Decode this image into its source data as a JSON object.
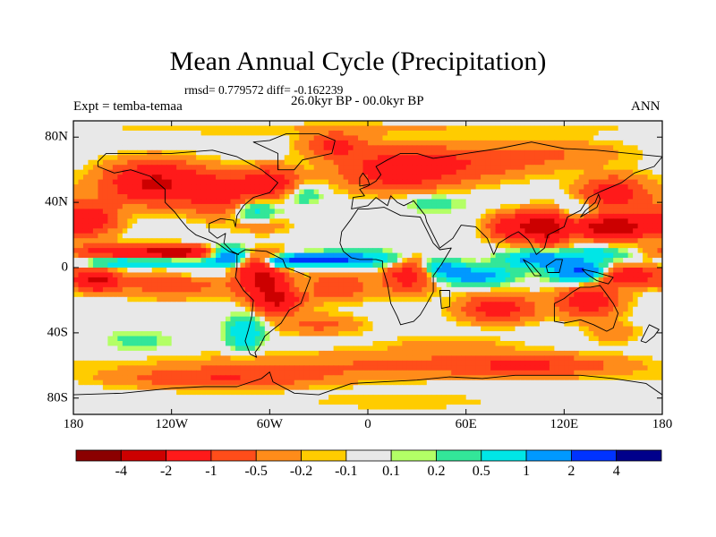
{
  "title": "Mean Annual Cycle (Precipitation)",
  "stats_text": "rmsd= 0.779572 diff= -0.162239",
  "experiment_label": "Expt = temba-temaa",
  "period_label": "26.0kyr BP - 00.0kyr BP",
  "season_label": "ANN",
  "x_ticks": [
    "180",
    "120W",
    "60W",
    "0",
    "60E",
    "120E",
    "180"
  ],
  "y_ticks": [
    "80N",
    "40N",
    "0",
    "40S",
    "80S"
  ],
  "colorbar": {
    "colors": [
      "#8b0000",
      "#cc0000",
      "#ff1a1a",
      "#ff4d1a",
      "#ff8c1a",
      "#ffcc00",
      "#e8e8e8",
      "#b3ff66",
      "#33e699",
      "#00e6e6",
      "#0099ff",
      "#0033ff",
      "#00008b"
    ],
    "labels": [
      "-4",
      "-2",
      "-1",
      "-0.5",
      "-0.2",
      "-0.1",
      "0.1",
      "0.2",
      "0.5",
      "1",
      "2",
      "4"
    ]
  },
  "chart_data": {
    "type": "heatmap",
    "title": "Mean Annual Cycle (Precipitation)",
    "subtitle": "rmsd= 0.779572 diff= -0.162239",
    "xlabel": "",
    "ylabel": "",
    "xlim": [
      -180,
      180
    ],
    "ylim": [
      -90,
      90
    ],
    "x_tick_labels": [
      "180",
      "120W",
      "60W",
      "0",
      "60E",
      "120E",
      "180"
    ],
    "y_tick_labels": [
      "80N",
      "40N",
      "0",
      "40S",
      "80S"
    ],
    "contour_levels": [
      -4,
      -2,
      -1,
      -0.5,
      -0.2,
      -0.1,
      0.1,
      0.2,
      0.5,
      1,
      2,
      4
    ],
    "background_value": 0,
    "anomalies": [
      {
        "lon": -130,
        "lat": 52,
        "v": -2.2,
        "rx": 28,
        "ry": 12
      },
      {
        "lon": -170,
        "lat": 30,
        "v": -1.5,
        "rx": 16,
        "ry": 10
      },
      {
        "lon": -150,
        "lat": 10,
        "v": -1.6,
        "rx": 30,
        "ry": 4
      },
      {
        "lon": -115,
        "lat": 9,
        "v": -2.4,
        "rx": 20,
        "ry": 4
      },
      {
        "lon": -85,
        "lat": 7,
        "v": 1.6,
        "rx": 12,
        "ry": 6
      },
      {
        "lon": -120,
        "lat": 3,
        "v": 1.2,
        "rx": 25,
        "ry": 3
      },
      {
        "lon": -155,
        "lat": 3,
        "v": 0.8,
        "rx": 18,
        "ry": 3
      },
      {
        "lon": -120,
        "lat": -10,
        "v": -0.9,
        "rx": 30,
        "ry": 8
      },
      {
        "lon": -165,
        "lat": -8,
        "v": -2.2,
        "rx": 12,
        "ry": 6
      },
      {
        "lon": -105,
        "lat": -5,
        "v": 0.4,
        "rx": 25,
        "ry": 3
      },
      {
        "lon": -90,
        "lat": 45,
        "v": -1.4,
        "rx": 20,
        "ry": 12
      },
      {
        "lon": -60,
        "lat": 52,
        "v": -1.6,
        "rx": 16,
        "ry": 9
      },
      {
        "lon": -70,
        "lat": 35,
        "v": 0.8,
        "rx": 14,
        "ry": 7
      },
      {
        "lon": -65,
        "lat": 26,
        "v": -0.4,
        "rx": 18,
        "ry": 5
      },
      {
        "lon": -40,
        "lat": 45,
        "v": 0.5,
        "rx": 12,
        "ry": 6
      },
      {
        "lon": -35,
        "lat": 5,
        "v": 2.5,
        "rx": 20,
        "ry": 3
      },
      {
        "lon": -55,
        "lat": 2,
        "v": 1.5,
        "rx": 10,
        "ry": 4
      },
      {
        "lon": -65,
        "lat": -5,
        "v": -2.3,
        "rx": 15,
        "ry": 12
      },
      {
        "lon": -55,
        "lat": -20,
        "v": -2.0,
        "rx": 14,
        "ry": 8
      },
      {
        "lon": -75,
        "lat": -40,
        "v": 1.0,
        "rx": 10,
        "ry": 10
      },
      {
        "lon": -40,
        "lat": -12,
        "v": 0.4,
        "rx": 10,
        "ry": 6
      },
      {
        "lon": -15,
        "lat": 5,
        "v": 1.4,
        "rx": 18,
        "ry": 4
      },
      {
        "lon": 10,
        "lat": 5,
        "v": 0.7,
        "rx": 15,
        "ry": 5
      },
      {
        "lon": -20,
        "lat": -12,
        "v": -1.0,
        "rx": 20,
        "ry": 8
      },
      {
        "lon": -30,
        "lat": -35,
        "v": -0.6,
        "rx": 25,
        "ry": 6
      },
      {
        "lon": 25,
        "lat": -5,
        "v": -1.4,
        "rx": 15,
        "ry": 10
      },
      {
        "lon": 45,
        "lat": 0,
        "v": 1.2,
        "rx": 12,
        "ry": 5
      },
      {
        "lon": 65,
        "lat": -5,
        "v": 1.5,
        "rx": 20,
        "ry": 5
      },
      {
        "lon": 80,
        "lat": -25,
        "v": -1.4,
        "rx": 22,
        "ry": 8
      },
      {
        "lon": 20,
        "lat": 60,
        "v": -1.6,
        "rx": 35,
        "ry": 12
      },
      {
        "lon": 70,
        "lat": 65,
        "v": -0.7,
        "rx": 40,
        "ry": 10
      },
      {
        "lon": 120,
        "lat": 70,
        "v": -0.4,
        "rx": 40,
        "ry": 8
      },
      {
        "lon": -20,
        "lat": 75,
        "v": -1.2,
        "rx": 18,
        "ry": 7
      },
      {
        "lon": 40,
        "lat": 40,
        "v": 0.4,
        "rx": 18,
        "ry": 6
      },
      {
        "lon": 90,
        "lat": 25,
        "v": -1.8,
        "rx": 15,
        "ry": 8
      },
      {
        "lon": 110,
        "lat": 25,
        "v": -2.3,
        "rx": 12,
        "ry": 10
      },
      {
        "lon": 130,
        "lat": 35,
        "v": 0.5,
        "rx": 18,
        "ry": 8
      },
      {
        "lon": 150,
        "lat": 45,
        "v": -1.5,
        "rx": 20,
        "ry": 10
      },
      {
        "lon": 150,
        "lat": 25,
        "v": -2.8,
        "rx": 25,
        "ry": 7
      },
      {
        "lon": 105,
        "lat": 5,
        "v": 1.5,
        "rx": 20,
        "ry": 5
      },
      {
        "lon": 130,
        "lat": -3,
        "v": 2.3,
        "rx": 15,
        "ry": 6
      },
      {
        "lon": 140,
        "lat": 8,
        "v": 0.8,
        "rx": 18,
        "ry": 4
      },
      {
        "lon": 160,
        "lat": -5,
        "v": -1.6,
        "rx": 20,
        "ry": 6
      },
      {
        "lon": 135,
        "lat": -20,
        "v": -1.5,
        "rx": 18,
        "ry": 10
      },
      {
        "lon": 150,
        "lat": -40,
        "v": -0.4,
        "rx": 15,
        "ry": 6
      },
      {
        "lon": 0,
        "lat": -60,
        "v": -0.5,
        "rx": 120,
        "ry": 8
      },
      {
        "lon": -90,
        "lat": -68,
        "v": -0.9,
        "rx": 60,
        "ry": 6
      },
      {
        "lon": 100,
        "lat": -60,
        "v": -0.9,
        "rx": 50,
        "ry": 6
      },
      {
        "lon": 50,
        "lat": -48,
        "v": -0.3,
        "rx": 40,
        "ry": 6
      },
      {
        "lon": -140,
        "lat": -45,
        "v": 0.3,
        "rx": 20,
        "ry": 6
      },
      {
        "lon": 0,
        "lat": 85,
        "v": -0.2,
        "rx": 180,
        "ry": 4
      },
      {
        "lon": 20,
        "lat": -82,
        "v": -0.2,
        "rx": 60,
        "ry": 5
      }
    ]
  }
}
